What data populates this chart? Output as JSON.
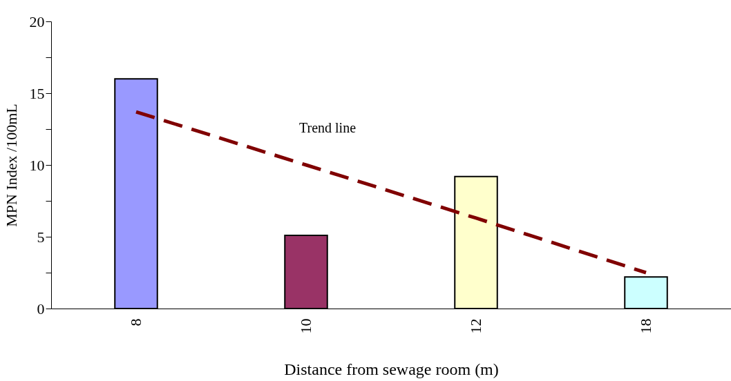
{
  "chart_data": {
    "type": "bar",
    "xlabel": "Distance from sewage room (m)",
    "ylabel": "MPN Index  /100mL",
    "categories": [
      "8",
      "10",
      "12",
      "18"
    ],
    "series": [
      {
        "values": [
          16,
          5.1,
          9.2,
          2.2
        ],
        "colors": [
          "#9999ff",
          "#993366",
          "#ffffcc",
          "#ccffff"
        ]
      },
      {
        "type": "line",
        "color": "#800000",
        "line_style": "dashed",
        "values": [
          13.7,
          10.0,
          6.3,
          2.5
        ]
      }
    ],
    "annotations": [
      "Trend line"
    ],
    "ylim": [
      0,
      20
    ],
    "yticks": [
      0,
      {
        "value": 2.5,
        "label": null
      },
      5,
      {
        "value": 7.5,
        "label": null
      },
      10,
      {
        "value": 12.5,
        "label": null
      },
      15,
      {
        "value": 17.5,
        "label": null
      },
      20
    ],
    "grid": false
  }
}
